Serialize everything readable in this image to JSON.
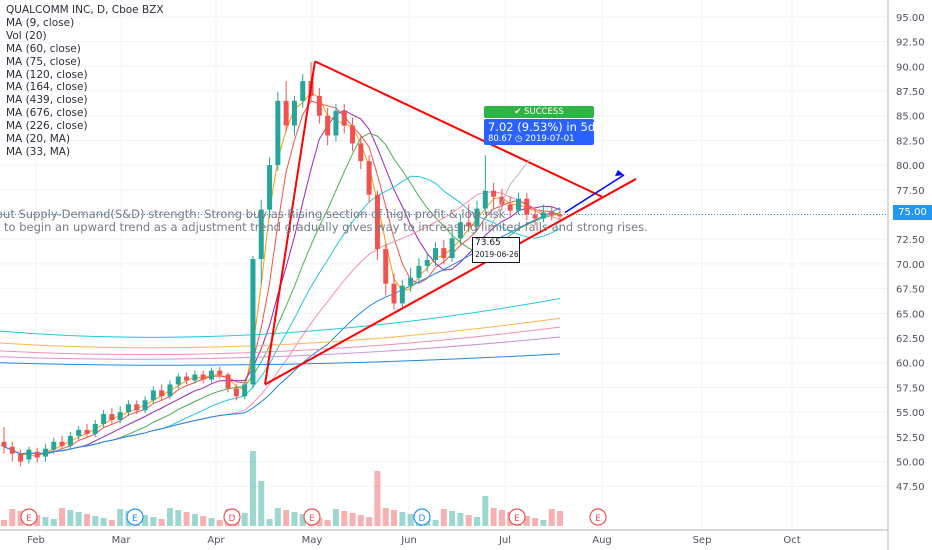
{
  "header": {
    "title": "QUALCOMM INC, D, Cboe BZX",
    "indicators": [
      "MA (9, close)",
      "Vol (20)",
      "MA (60, close)",
      "MA (75, close)",
      "MA (120, close)",
      "MA (164, close)",
      "MA (439, close)",
      "MA (676, close)",
      "MA (226, close)",
      "MA (20, MA)",
      "MA (33, MA)"
    ]
  },
  "annotation": {
    "line1": "out Supply-Demand(S&D) strength: Strong buy as Rising section of high profit & low risk",
    "line2": "to begin an upward trend as a adjustment trend gradually gives way to increasing limited falls and strong rises."
  },
  "trade_box": {
    "status": "✔ SUCCESS",
    "gain": "7.02 (9.53%) in 5d",
    "detail": "80.67  ◷ 2019-07-01"
  },
  "low_label": {
    "price": "73.65",
    "date": "2019-06-26"
  },
  "current_price": "75.00",
  "event_markers": [
    "E",
    "E",
    "D",
    "E",
    "D",
    "E",
    "E"
  ],
  "colors": {
    "up": "#26a69a",
    "down": "#ef5350",
    "trendline": "#ff0000",
    "projection": "#0000ff",
    "price_tag": "#2196f3",
    "ma_colors": [
      "#ff9800",
      "#ef5350",
      "#9c27b0",
      "#4caf50",
      "#26c6da",
      "#f48fb1",
      "#1e88e5",
      "#ce93d8",
      "#ffb74d",
      "#ab47bc",
      "#66bb6a"
    ]
  },
  "chart_data": {
    "type": "candlestick",
    "ylim": [
      45.5,
      96
    ],
    "y_ticks": [
      47.5,
      50.0,
      52.5,
      55.0,
      57.5,
      60.0,
      62.5,
      65.0,
      67.5,
      70.0,
      72.5,
      75.0,
      77.5,
      80.0,
      82.5,
      85.0,
      87.5,
      90.0,
      92.5,
      95.0
    ],
    "x_ticks": [
      "Feb",
      "Mar",
      "Apr",
      "May",
      "Jun",
      "Jul",
      "Aug",
      "Sep",
      "Oct"
    ],
    "candles": [
      [
        52.0,
        51.5,
        53.5,
        50.8
      ],
      [
        51.5,
        50.8,
        52.0,
        50.0
      ],
      [
        50.8,
        50.0,
        51.2,
        49.5
      ],
      [
        50.2,
        51.2,
        51.5,
        49.8
      ],
      [
        51.0,
        50.4,
        51.4,
        49.9
      ],
      [
        50.5,
        51.3,
        51.8,
        50.0
      ],
      [
        51.2,
        52.0,
        52.4,
        50.8
      ],
      [
        52.0,
        51.6,
        52.6,
        51.2
      ],
      [
        51.6,
        52.6,
        53.0,
        51.2
      ],
      [
        52.6,
        53.2,
        53.6,
        52.2
      ],
      [
        53.2,
        52.8,
        53.8,
        52.4
      ],
      [
        52.8,
        53.8,
        54.2,
        52.5
      ],
      [
        53.8,
        54.8,
        55.2,
        53.4
      ],
      [
        54.8,
        54.2,
        55.4,
        53.8
      ],
      [
        54.2,
        55.0,
        55.6,
        53.9
      ],
      [
        55.0,
        55.8,
        56.2,
        54.6
      ],
      [
        55.8,
        55.2,
        56.2,
        54.8
      ],
      [
        55.2,
        56.2,
        56.6,
        54.9
      ],
      [
        56.2,
        57.2,
        57.6,
        55.8
      ],
      [
        57.2,
        56.6,
        57.8,
        56.2
      ],
      [
        56.6,
        57.8,
        58.2,
        56.3
      ],
      [
        57.8,
        58.6,
        58.9,
        57.4
      ],
      [
        58.6,
        58.2,
        59.0,
        57.8
      ],
      [
        58.2,
        58.8,
        59.2,
        57.9
      ],
      [
        58.8,
        58.3,
        59.2,
        57.9
      ],
      [
        58.3,
        59.2,
        59.5,
        58.0
      ],
      [
        59.2,
        58.8,
        59.6,
        58.4
      ],
      [
        58.8,
        57.4,
        59.0,
        57.0
      ],
      [
        57.4,
        56.6,
        57.8,
        56.2
      ],
      [
        56.6,
        57.8,
        58.0,
        56.3
      ],
      [
        57.8,
        70.5,
        70.8,
        57.4
      ],
      [
        70.5,
        75.5,
        76.5,
        68.0
      ],
      [
        75.5,
        80.0,
        80.8,
        74.6
      ],
      [
        80.0,
        86.5,
        87.4,
        79.4
      ],
      [
        86.5,
        84.0,
        88.5,
        83.4
      ],
      [
        84.0,
        86.5,
        87.0,
        83.0
      ],
      [
        86.5,
        88.5,
        89.2,
        85.8
      ],
      [
        88.5,
        87.0,
        90.4,
        86.4
      ],
      [
        87.0,
        85.0,
        87.8,
        84.2
      ],
      [
        85.0,
        83.0,
        85.8,
        82.0
      ],
      [
        83.0,
        85.5,
        86.2,
        82.4
      ],
      [
        85.5,
        84.0,
        86.2,
        83.2
      ],
      [
        84.0,
        82.2,
        84.8,
        81.4
      ],
      [
        82.2,
        80.4,
        83.0,
        79.6
      ],
      [
        80.4,
        77.0,
        81.0,
        76.2
      ],
      [
        77.0,
        71.5,
        77.4,
        70.4
      ],
      [
        71.5,
        68.0,
        72.0,
        66.8
      ],
      [
        68.0,
        66.0,
        69.0,
        65.4
      ],
      [
        66.0,
        67.8,
        68.4,
        65.6
      ],
      [
        67.8,
        68.6,
        69.6,
        67.2
      ],
      [
        68.6,
        69.8,
        70.6,
        68.2
      ],
      [
        69.8,
        70.4,
        71.2,
        69.2
      ],
      [
        70.4,
        71.6,
        72.2,
        69.8
      ],
      [
        71.6,
        70.6,
        72.4,
        70.0
      ],
      [
        70.6,
        72.6,
        73.4,
        70.2
      ],
      [
        72.6,
        74.2,
        75.0,
        72.0
      ],
      [
        74.2,
        73.8,
        76.0,
        73.2
      ],
      [
        73.8,
        75.6,
        76.4,
        73.4
      ],
      [
        75.6,
        77.4,
        81.0,
        75.0
      ],
      [
        77.4,
        76.8,
        78.2,
        75.6
      ],
      [
        76.8,
        76.0,
        77.6,
        75.4
      ],
      [
        76.0,
        75.4,
        76.8,
        74.8
      ],
      [
        75.4,
        76.6,
        77.2,
        75.0
      ],
      [
        76.6,
        75.0,
        77.2,
        74.4
      ],
      [
        75.0,
        74.6,
        75.6,
        73.9
      ],
      [
        74.6,
        75.2,
        76.0,
        74.2
      ],
      [
        75.2,
        75.0,
        75.8,
        74.4
      ],
      [
        75.0,
        74.8,
        75.6,
        74.2
      ]
    ],
    "trendlines": [
      {
        "from": [
          57.5,
          "2019-04-16"
        ],
        "to": [
          90.5,
          "2019-05-01"
        ],
        "color": "#ff0000"
      },
      {
        "from": [
          90.5,
          "2019-05-01"
        ],
        "to": [
          76.8,
          "2019-07-25"
        ],
        "color": "#ff0000"
      },
      {
        "from": [
          57.5,
          "2019-04-16"
        ],
        "to": [
          78.5,
          "2019-07-28"
        ],
        "color": "#ff0000"
      },
      {
        "from": [
          75.2,
          "2019-07-18"
        ],
        "to": [
          79.0,
          "2019-07-26"
        ],
        "color": "#0000ff"
      }
    ]
  }
}
